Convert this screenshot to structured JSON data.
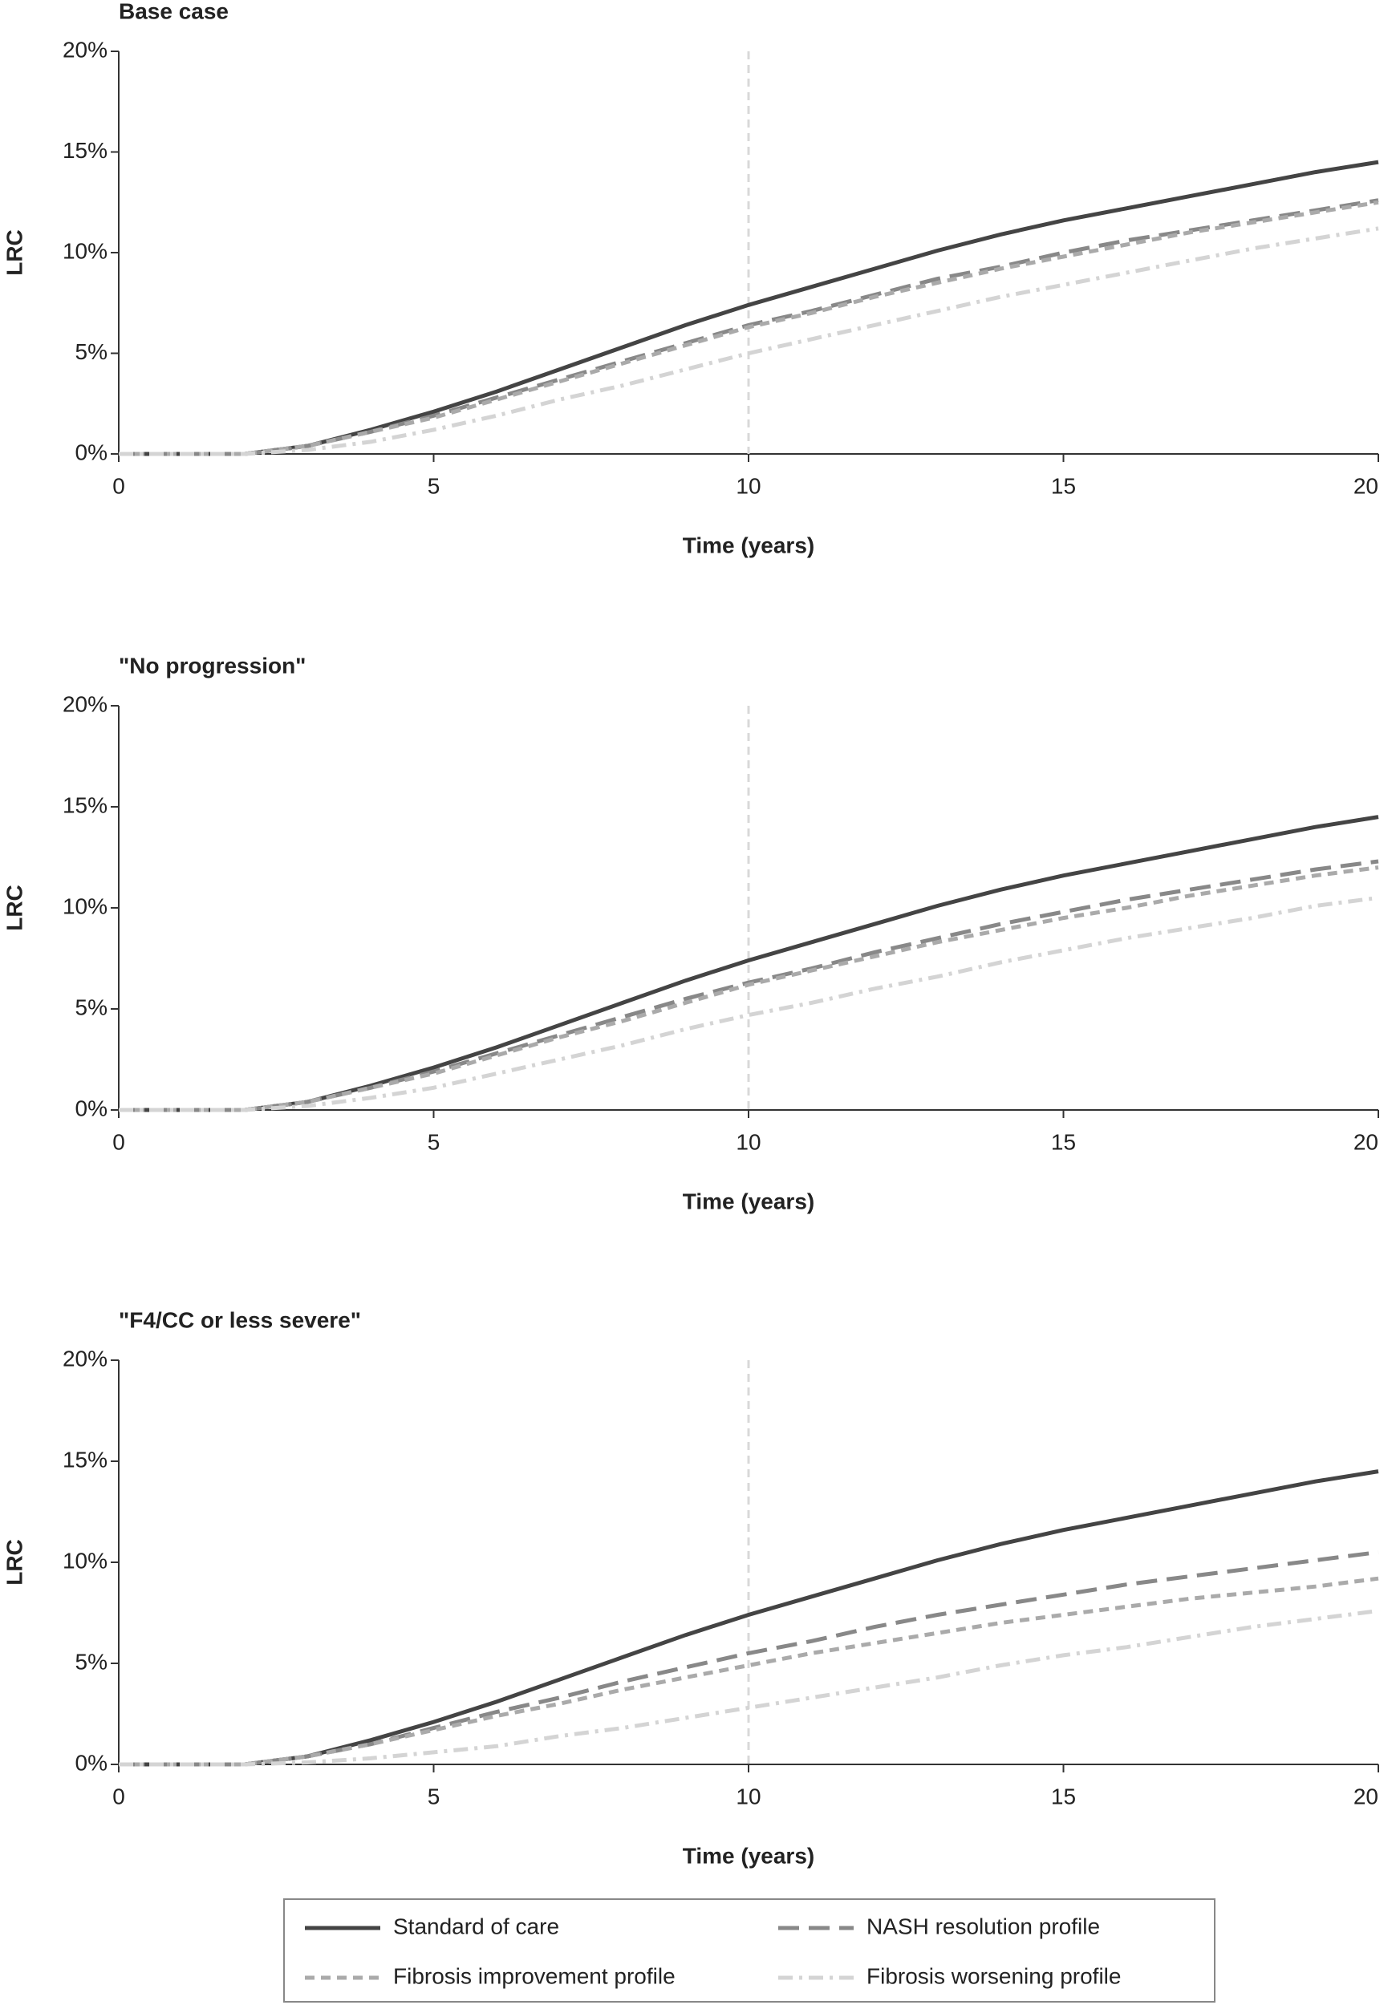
{
  "chart_data": [
    {
      "type": "line",
      "title": "Base case",
      "x_label": "Time (years)",
      "y_label": "LRC",
      "x": [
        0,
        1,
        2,
        3,
        4,
        5,
        6,
        7,
        8,
        9,
        10,
        11,
        12,
        13,
        14,
        15,
        16,
        17,
        18,
        19,
        20
      ],
      "xlim": [
        0,
        20
      ],
      "xticks": [
        0,
        5,
        10,
        15,
        20
      ],
      "ylim": [
        0,
        20
      ],
      "yticks": [
        {
          "value": 0,
          "label": "0%"
        },
        {
          "value": 5,
          "label": "5%"
        },
        {
          "value": 10,
          "label": "10%"
        },
        {
          "value": 15,
          "label": "15%"
        },
        {
          "value": 20,
          "label": "20%"
        }
      ],
      "vline": 10,
      "series": [
        {
          "name": "Standard of care",
          "color": "#444444",
          "dash": "solid",
          "values": [
            0,
            0,
            0,
            0.4,
            1.2,
            2.1,
            3.1,
            4.2,
            5.3,
            6.4,
            7.4,
            8.3,
            9.2,
            10.1,
            10.9,
            11.6,
            12.2,
            12.8,
            13.4,
            14.0,
            14.5
          ]
        },
        {
          "name": "NASH resolution profile",
          "color": "#888888",
          "dash": "long",
          "values": [
            0,
            0,
            0,
            0.4,
            1.1,
            1.9,
            2.8,
            3.7,
            4.6,
            5.5,
            6.4,
            7.1,
            7.9,
            8.7,
            9.3,
            10.0,
            10.6,
            11.1,
            11.6,
            12.1,
            12.6
          ]
        },
        {
          "name": "Fibrosis improvement profile",
          "color": "#aaaaaa",
          "dash": "short",
          "values": [
            0,
            0,
            0,
            0.4,
            1.1,
            1.8,
            2.7,
            3.6,
            4.5,
            5.4,
            6.3,
            7.0,
            7.8,
            8.5,
            9.2,
            9.8,
            10.4,
            11.0,
            11.5,
            12.0,
            12.5
          ]
        },
        {
          "name": "Fibrosis worsening profile",
          "color": "#d4d4d4",
          "dash": "dashdot",
          "values": [
            0,
            0,
            0,
            0.2,
            0.6,
            1.2,
            1.9,
            2.7,
            3.4,
            4.2,
            5.0,
            5.7,
            6.4,
            7.1,
            7.8,
            8.4,
            9.0,
            9.6,
            10.2,
            10.7,
            11.2
          ]
        }
      ]
    },
    {
      "type": "line",
      "title": "\"No progression\"",
      "x_label": "Time (years)",
      "y_label": "LRC",
      "x": [
        0,
        1,
        2,
        3,
        4,
        5,
        6,
        7,
        8,
        9,
        10,
        11,
        12,
        13,
        14,
        15,
        16,
        17,
        18,
        19,
        20
      ],
      "xlim": [
        0,
        20
      ],
      "xticks": [
        0,
        5,
        10,
        15,
        20
      ],
      "ylim": [
        0,
        20
      ],
      "yticks": [
        {
          "value": 0,
          "label": "0%"
        },
        {
          "value": 5,
          "label": "5%"
        },
        {
          "value": 10,
          "label": "10%"
        },
        {
          "value": 15,
          "label": "15%"
        },
        {
          "value": 20,
          "label": "20%"
        }
      ],
      "vline": 10,
      "series": [
        {
          "name": "Standard of care",
          "color": "#444444",
          "dash": "solid",
          "values": [
            0,
            0,
            0,
            0.4,
            1.2,
            2.1,
            3.1,
            4.2,
            5.3,
            6.4,
            7.4,
            8.3,
            9.2,
            10.1,
            10.9,
            11.6,
            12.2,
            12.8,
            13.4,
            14.0,
            14.5
          ]
        },
        {
          "name": "NASH resolution profile",
          "color": "#888888",
          "dash": "long",
          "values": [
            0,
            0,
            0,
            0.4,
            1.1,
            1.9,
            2.8,
            3.7,
            4.6,
            5.5,
            6.3,
            7.0,
            7.8,
            8.5,
            9.2,
            9.8,
            10.4,
            10.9,
            11.4,
            11.9,
            12.3
          ]
        },
        {
          "name": "Fibrosis improvement profile",
          "color": "#aaaaaa",
          "dash": "short",
          "values": [
            0,
            0,
            0,
            0.4,
            1.1,
            1.8,
            2.7,
            3.6,
            4.4,
            5.3,
            6.2,
            6.9,
            7.6,
            8.3,
            8.9,
            9.5,
            10.0,
            10.6,
            11.1,
            11.6,
            12.0
          ]
        },
        {
          "name": "Fibrosis worsening profile",
          "color": "#d4d4d4",
          "dash": "dashdot",
          "values": [
            0,
            0,
            0,
            0.2,
            0.6,
            1.1,
            1.8,
            2.5,
            3.2,
            4.0,
            4.7,
            5.3,
            6.0,
            6.6,
            7.3,
            7.9,
            8.5,
            9.0,
            9.5,
            10.1,
            10.5
          ]
        }
      ]
    },
    {
      "type": "line",
      "title": "\"F4/CC or less severe\"",
      "x_label": "Time (years)",
      "y_label": "LRC",
      "x": [
        0,
        1,
        2,
        3,
        4,
        5,
        6,
        7,
        8,
        9,
        10,
        11,
        12,
        13,
        14,
        15,
        16,
        17,
        18,
        19,
        20
      ],
      "xlim": [
        0,
        20
      ],
      "xticks": [
        0,
        5,
        10,
        15,
        20
      ],
      "ylim": [
        0,
        20
      ],
      "yticks": [
        {
          "value": 0,
          "label": "0%"
        },
        {
          "value": 5,
          "label": "5%"
        },
        {
          "value": 10,
          "label": "10%"
        },
        {
          "value": 15,
          "label": "15%"
        },
        {
          "value": 20,
          "label": "20%"
        }
      ],
      "vline": 10,
      "series": [
        {
          "name": "Standard of care",
          "color": "#444444",
          "dash": "solid",
          "values": [
            0,
            0,
            0,
            0.4,
            1.2,
            2.1,
            3.1,
            4.2,
            5.3,
            6.4,
            7.4,
            8.3,
            9.2,
            10.1,
            10.9,
            11.6,
            12.2,
            12.8,
            13.4,
            14.0,
            14.5
          ]
        },
        {
          "name": "NASH resolution profile",
          "color": "#888888",
          "dash": "long",
          "values": [
            0,
            0,
            0,
            0.4,
            1.0,
            1.8,
            2.6,
            3.3,
            4.1,
            4.8,
            5.5,
            6.1,
            6.8,
            7.4,
            7.9,
            8.4,
            8.9,
            9.3,
            9.7,
            10.1,
            10.5
          ]
        },
        {
          "name": "Fibrosis improvement profile",
          "color": "#aaaaaa",
          "dash": "short",
          "values": [
            0,
            0,
            0,
            0.4,
            1.0,
            1.7,
            2.4,
            3.0,
            3.7,
            4.3,
            4.9,
            5.5,
            6.0,
            6.5,
            7.0,
            7.4,
            7.8,
            8.2,
            8.5,
            8.8,
            9.2
          ]
        },
        {
          "name": "Fibrosis worsening profile",
          "color": "#d4d4d4",
          "dash": "dashdot",
          "values": [
            0,
            0,
            0,
            0.1,
            0.3,
            0.6,
            0.9,
            1.4,
            1.8,
            2.3,
            2.8,
            3.3,
            3.8,
            4.3,
            4.9,
            5.4,
            5.8,
            6.3,
            6.8,
            7.2,
            7.6
          ]
        }
      ]
    }
  ]
}
